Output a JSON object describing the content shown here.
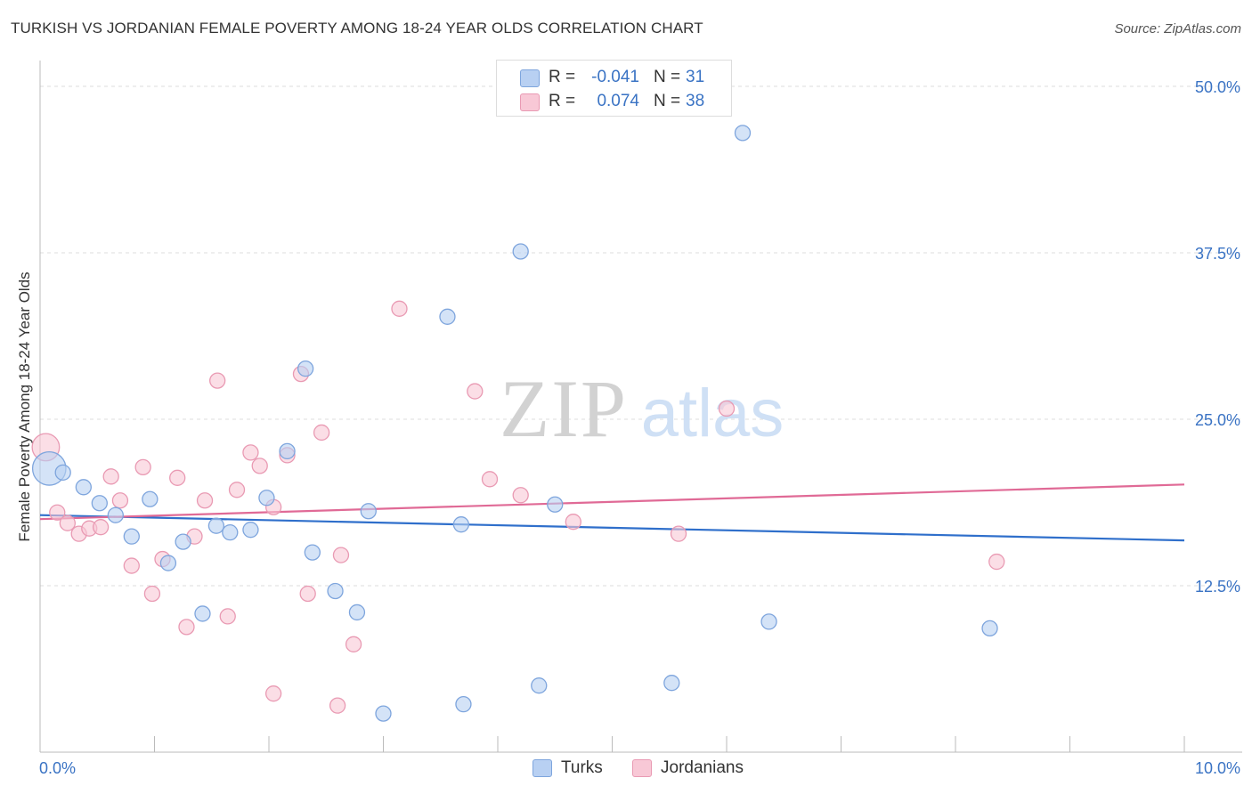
{
  "header": {
    "title": "TURKISH VS JORDANIAN FEMALE POVERTY AMONG 18-24 YEAR OLDS CORRELATION CHART",
    "source": "Source: ZipAtlas.com"
  },
  "watermark": {
    "zip": "ZIP",
    "atlas": "atlas"
  },
  "legend": {
    "turks": {
      "r_label": "R =",
      "r_value": "-0.041",
      "n_label": "N =",
      "n_value": "31"
    },
    "jordanians": {
      "r_label": "R =",
      "r_value": "0.074",
      "n_label": "N =",
      "n_value": "38"
    }
  },
  "colors": {
    "turks_fill": "#b8d0f2",
    "turks_stroke": "#7ea5dd",
    "turks_line": "#2f6fcb",
    "jordanians_fill": "#f8c8d6",
    "jordanians_stroke": "#e99ab3",
    "jordanians_line": "#e06a96",
    "tick_label": "#3a73c4",
    "grid": "#dddddd"
  },
  "chart_data": {
    "type": "scatter",
    "title": "TURKISH VS JORDANIAN FEMALE POVERTY AMONG 18-24 YEAR OLDS CORRELATION CHART",
    "xlabel": "",
    "ylabel": "Female Poverty Among 18-24 Year Olds",
    "xlim": [
      0,
      10
    ],
    "ylim": [
      0,
      50
    ],
    "x_tick_labels": [
      "0.0%",
      "10.0%"
    ],
    "y_ticks": [
      12.5,
      25.0,
      37.5,
      50.0
    ],
    "y_tick_labels": [
      "12.5%",
      "25.0%",
      "37.5%",
      "50.0%"
    ],
    "grid": true,
    "legend_position": "bottom-center",
    "series": [
      {
        "name": "Turks",
        "points": [
          [
            0.08,
            21.3,
            2.2
          ],
          [
            0.2,
            21.0,
            1
          ],
          [
            0.38,
            19.9,
            1
          ],
          [
            0.52,
            18.7,
            1
          ],
          [
            0.66,
            17.8,
            1
          ],
          [
            0.8,
            16.2,
            1
          ],
          [
            0.96,
            19.0,
            1
          ],
          [
            1.12,
            14.2,
            1
          ],
          [
            1.25,
            15.8,
            1
          ],
          [
            1.42,
            10.4,
            1
          ],
          [
            1.54,
            17.0,
            1
          ],
          [
            1.66,
            16.5,
            1
          ],
          [
            1.84,
            16.7,
            1
          ],
          [
            1.98,
            19.1,
            1
          ],
          [
            2.16,
            22.6,
            1
          ],
          [
            2.32,
            28.8,
            1
          ],
          [
            2.38,
            15.0,
            1
          ],
          [
            2.58,
            12.1,
            1
          ],
          [
            2.77,
            10.5,
            1
          ],
          [
            2.87,
            18.1,
            1
          ],
          [
            3.0,
            2.9,
            1
          ],
          [
            3.56,
            32.7,
            1
          ],
          [
            3.7,
            3.6,
            1
          ],
          [
            3.68,
            17.1,
            1
          ],
          [
            4.2,
            37.6,
            1
          ],
          [
            4.36,
            5.0,
            1
          ],
          [
            4.5,
            18.6,
            1
          ],
          [
            5.52,
            5.2,
            1
          ],
          [
            6.14,
            46.5,
            1
          ],
          [
            6.37,
            9.8,
            1
          ],
          [
            8.3,
            9.3,
            1
          ]
        ],
        "trend": [
          [
            0.0,
            17.8
          ],
          [
            10.0,
            15.9
          ]
        ]
      },
      {
        "name": "Jordanians",
        "points": [
          [
            0.05,
            22.9,
            1.8
          ],
          [
            0.15,
            18.0,
            1
          ],
          [
            0.24,
            17.2,
            1
          ],
          [
            0.34,
            16.4,
            1
          ],
          [
            0.43,
            16.8,
            1
          ],
          [
            0.53,
            16.9,
            1
          ],
          [
            0.62,
            20.7,
            1
          ],
          [
            0.7,
            18.9,
            1
          ],
          [
            0.8,
            14.0,
            1
          ],
          [
            0.9,
            21.4,
            1
          ],
          [
            0.98,
            11.9,
            1
          ],
          [
            1.07,
            14.5,
            1
          ],
          [
            1.2,
            20.6,
            1
          ],
          [
            1.28,
            9.4,
            1
          ],
          [
            1.35,
            16.2,
            1
          ],
          [
            1.44,
            18.9,
            1
          ],
          [
            1.55,
            27.9,
            1
          ],
          [
            1.64,
            10.2,
            1
          ],
          [
            1.72,
            19.7,
            1
          ],
          [
            1.84,
            22.5,
            1
          ],
          [
            1.92,
            21.5,
            1
          ],
          [
            2.04,
            18.4,
            1
          ],
          [
            2.04,
            4.4,
            1
          ],
          [
            2.16,
            22.3,
            1
          ],
          [
            2.28,
            28.4,
            1
          ],
          [
            2.34,
            11.9,
            1
          ],
          [
            2.46,
            24.0,
            1
          ],
          [
            2.6,
            3.5,
            1
          ],
          [
            2.63,
            14.8,
            1
          ],
          [
            2.74,
            8.1,
            1
          ],
          [
            3.14,
            33.3,
            1
          ],
          [
            3.8,
            27.1,
            1
          ],
          [
            3.93,
            20.5,
            1
          ],
          [
            4.2,
            19.3,
            1
          ],
          [
            4.66,
            17.3,
            1
          ],
          [
            5.58,
            16.4,
            1
          ],
          [
            6.0,
            25.8,
            1
          ],
          [
            8.36,
            14.3,
            1
          ]
        ],
        "trend": [
          [
            0.0,
            17.5
          ],
          [
            10.0,
            20.1
          ]
        ]
      }
    ]
  },
  "bottom_legend": {
    "turks": "Turks",
    "jordanians": "Jordanians"
  }
}
